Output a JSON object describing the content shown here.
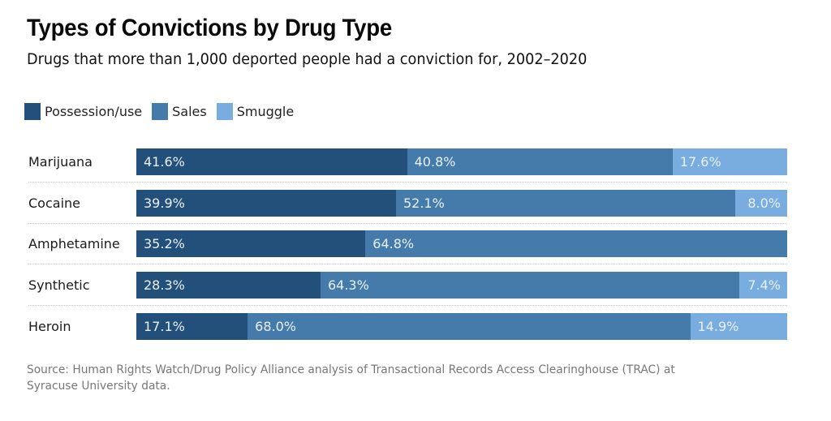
{
  "chart_data": {
    "type": "bar",
    "orientation": "horizontal",
    "stacked": true,
    "title": "Types of Convictions by Drug Type",
    "subtitle": "Drugs that more than 1,000 deported people had a conviction for, 2002–2020",
    "xlabel": "",
    "ylabel": "",
    "xlim": [
      0,
      100
    ],
    "grid": false,
    "legend_position": "top-left",
    "categories": [
      "Marijuana",
      "Cocaine",
      "Amphetamine",
      "Synthetic",
      "Heroin"
    ],
    "series": [
      {
        "name": "Possession/use",
        "color": "#234f7b",
        "values": [
          41.6,
          39.9,
          35.2,
          28.3,
          17.1
        ],
        "labels": [
          "41.6%",
          "39.9%",
          "35.2%",
          "28.3%",
          "17.1%"
        ]
      },
      {
        "name": "Sales",
        "color": "#447bab",
        "values": [
          40.8,
          52.1,
          64.8,
          64.3,
          68.0
        ],
        "labels": [
          "40.8%",
          "52.1%",
          "64.8%",
          "64.3%",
          "68.0%"
        ]
      },
      {
        "name": "Smuggle",
        "color": "#79ade0",
        "values": [
          17.6,
          8.0,
          0,
          7.4,
          14.9
        ],
        "labels": [
          "17.6%",
          "8.0%",
          "",
          "7.4%",
          "14.9%"
        ]
      }
    ],
    "source": "Source: Human Rights Watch/Drug Policy Alliance analysis of Transactional Records Access Clearinghouse (TRAC) at Syracuse University data."
  }
}
